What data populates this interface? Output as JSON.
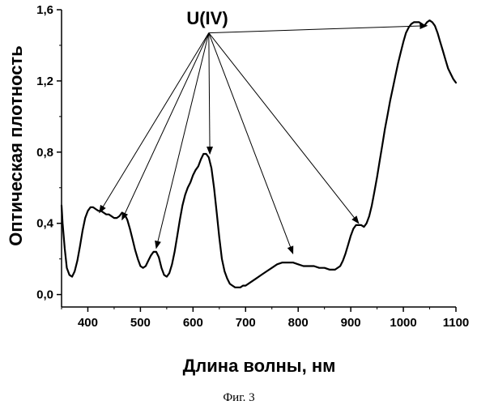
{
  "chart_data": {
    "type": "line",
    "xlabel": "Длина волны, нм",
    "ylabel": "Оптическая плотность",
    "xlim": [
      350,
      1100
    ],
    "ylim": [
      -0.07,
      1.6
    ],
    "x_ticks": [
      400,
      500,
      600,
      700,
      800,
      900,
      1000,
      1100
    ],
    "y_ticks": [
      0.0,
      0.4,
      0.8,
      1.2,
      1.6
    ],
    "y_tick_labels": [
      "0,0",
      "0,4",
      "0,8",
      "1,2",
      "1,6"
    ],
    "annotation": {
      "text": "U(IV)",
      "source": [
        630,
        1.47
      ],
      "targets": [
        [
          422,
          0.46
        ],
        [
          465,
          0.42
        ],
        [
          530,
          0.26
        ],
        [
          632,
          0.79
        ],
        [
          790,
          0.23
        ],
        [
          915,
          0.4
        ],
        [
          1045,
          1.51
        ]
      ]
    },
    "series": [
      {
        "color": "#000000",
        "x": [
          350,
          352,
          356,
          360,
          365,
          370,
          375,
          380,
          385,
          390,
          395,
          400,
          405,
          410,
          415,
          420,
          425,
          430,
          435,
          440,
          445,
          450,
          455,
          460,
          465,
          470,
          475,
          480,
          485,
          490,
          495,
          500,
          505,
          510,
          515,
          520,
          525,
          530,
          535,
          540,
          545,
          550,
          555,
          560,
          565,
          570,
          575,
          580,
          585,
          590,
          595,
          600,
          605,
          610,
          615,
          620,
          625,
          630,
          635,
          640,
          645,
          650,
          655,
          660,
          665,
          670,
          675,
          680,
          685,
          690,
          695,
          700,
          710,
          720,
          730,
          740,
          750,
          760,
          770,
          780,
          790,
          800,
          810,
          820,
          830,
          840,
          850,
          860,
          870,
          880,
          885,
          890,
          895,
          900,
          905,
          910,
          915,
          920,
          925,
          930,
          935,
          940,
          945,
          950,
          955,
          960,
          965,
          970,
          975,
          980,
          985,
          990,
          995,
          1000,
          1005,
          1010,
          1015,
          1020,
          1025,
          1030,
          1035,
          1040,
          1045,
          1050,
          1055,
          1060,
          1065,
          1070,
          1075,
          1080,
          1085,
          1090,
          1095,
          1100
        ],
        "y": [
          0.5,
          0.4,
          0.26,
          0.15,
          0.11,
          0.1,
          0.13,
          0.19,
          0.27,
          0.36,
          0.43,
          0.47,
          0.49,
          0.49,
          0.48,
          0.47,
          0.47,
          0.46,
          0.45,
          0.45,
          0.44,
          0.43,
          0.43,
          0.44,
          0.46,
          0.45,
          0.42,
          0.37,
          0.31,
          0.25,
          0.2,
          0.16,
          0.15,
          0.16,
          0.19,
          0.22,
          0.24,
          0.24,
          0.21,
          0.15,
          0.11,
          0.1,
          0.12,
          0.17,
          0.24,
          0.33,
          0.42,
          0.5,
          0.56,
          0.6,
          0.63,
          0.67,
          0.7,
          0.72,
          0.76,
          0.79,
          0.79,
          0.77,
          0.71,
          0.6,
          0.46,
          0.32,
          0.2,
          0.13,
          0.09,
          0.06,
          0.05,
          0.04,
          0.04,
          0.04,
          0.05,
          0.05,
          0.07,
          0.09,
          0.11,
          0.13,
          0.15,
          0.17,
          0.18,
          0.18,
          0.18,
          0.17,
          0.16,
          0.16,
          0.16,
          0.15,
          0.15,
          0.14,
          0.14,
          0.16,
          0.19,
          0.23,
          0.28,
          0.33,
          0.37,
          0.39,
          0.39,
          0.39,
          0.38,
          0.4,
          0.44,
          0.5,
          0.58,
          0.66,
          0.75,
          0.84,
          0.93,
          1.01,
          1.09,
          1.16,
          1.23,
          1.3,
          1.36,
          1.42,
          1.47,
          1.5,
          1.52,
          1.53,
          1.53,
          1.53,
          1.52,
          1.51,
          1.53,
          1.54,
          1.53,
          1.51,
          1.47,
          1.42,
          1.37,
          1.32,
          1.27,
          1.24,
          1.21,
          1.19
        ]
      }
    ]
  },
  "caption": "Фиг. 3"
}
